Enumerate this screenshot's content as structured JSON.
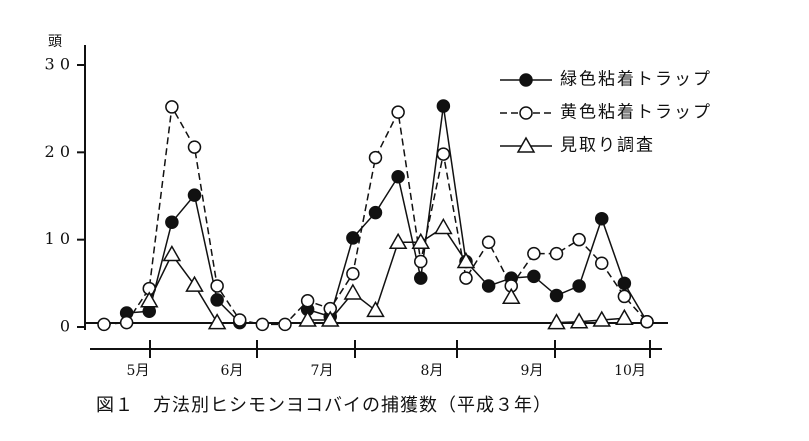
{
  "chart_data": {
    "type": "line",
    "caption": "図１　方法別ヒシモンヨコバイの捕獲数（平成３年）",
    "y_unit": "頭",
    "categories": [
      null,
      null,
      null,
      null,
      null,
      null,
      null,
      null,
      null,
      null,
      null,
      null,
      null,
      null,
      null,
      null,
      null,
      null,
      null,
      null,
      null,
      null,
      null,
      null,
      null
    ],
    "month_labels": [
      "5月",
      "6月",
      "7月",
      "8月",
      "9月",
      "10月"
    ],
    "ylim": [
      0,
      30
    ],
    "yticks": [
      {
        "value": 0,
        "label": "0"
      },
      {
        "value": 10,
        "label": "1 0"
      },
      {
        "value": 20,
        "label": "2 0"
      },
      {
        "value": 30,
        "label": "3 0"
      }
    ],
    "legend": "upper right",
    "series": [
      {
        "name": "緑色粘着トラップ",
        "marker": "filled-circle",
        "dash": "solid",
        "color": "#111111",
        "values": [
          null,
          1.6,
          1.8,
          12,
          15.1,
          3.1,
          0.5,
          null,
          null,
          2,
          1.2,
          10.2,
          13.1,
          17.2,
          5.6,
          25.3,
          7.5,
          4.7,
          5.6,
          5.8,
          3.6,
          4.7,
          12.4,
          5,
          0.6
        ]
      },
      {
        "name": "黄色粘着トラップ",
        "marker": "open-circle",
        "dash": "dashed",
        "color": "#111111",
        "values": [
          0.3,
          0.5,
          4.4,
          25.2,
          20.6,
          4.7,
          0.8,
          0.3,
          0.3,
          3,
          2.1,
          6.1,
          19.4,
          24.6,
          7.5,
          19.8,
          5.6,
          9.7,
          4.7,
          8.4,
          8.4,
          10,
          7.3,
          3.5,
          0.6
        ]
      },
      {
        "name": "見取り調査",
        "marker": "triangle",
        "dash": "solid",
        "color": "#111111",
        "values": [
          null,
          null,
          3,
          8.3,
          4.8,
          0.5,
          null,
          null,
          null,
          0.8,
          0.8,
          3.9,
          1.9,
          9.7,
          9.7,
          11.4,
          7.5,
          null,
          3.4,
          null,
          0.5,
          0.6,
          0.8,
          1,
          null
        ]
      }
    ]
  }
}
